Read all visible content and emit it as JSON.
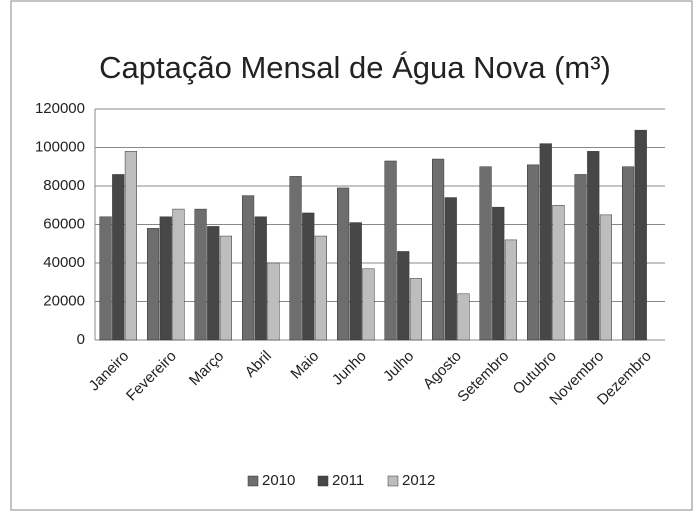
{
  "chart_data": {
    "type": "bar",
    "title": "Captação Mensal de Água Nova (m³)",
    "categories": [
      "Janeiro",
      "Fevereiro",
      "Março",
      "Abril",
      "Maio",
      "Junho",
      "Julho",
      "Agosto",
      "Setembro",
      "Outubro",
      "Novembro",
      "Dezembro"
    ],
    "series": [
      {
        "name": "2010",
        "color": "#6e6e6e",
        "values": [
          64000,
          58000,
          68000,
          75000,
          85000,
          79000,
          93000,
          94000,
          90000,
          91000,
          86000,
          90000
        ]
      },
      {
        "name": "2011",
        "color": "#474747",
        "values": [
          86000,
          64000,
          59000,
          64000,
          66000,
          61000,
          46000,
          74000,
          69000,
          102000,
          98000,
          109000
        ]
      },
      {
        "name": "2012",
        "color": "#bdbdbd",
        "values": [
          98000,
          68000,
          54000,
          40000,
          54000,
          37000,
          32000,
          24000,
          52000,
          70000,
          65000,
          null
        ]
      }
    ],
    "ylim": [
      0,
      120000
    ],
    "yticks": [
      0,
      20000,
      40000,
      60000,
      80000,
      100000,
      120000
    ],
    "grid": true,
    "legend": "bottom"
  }
}
